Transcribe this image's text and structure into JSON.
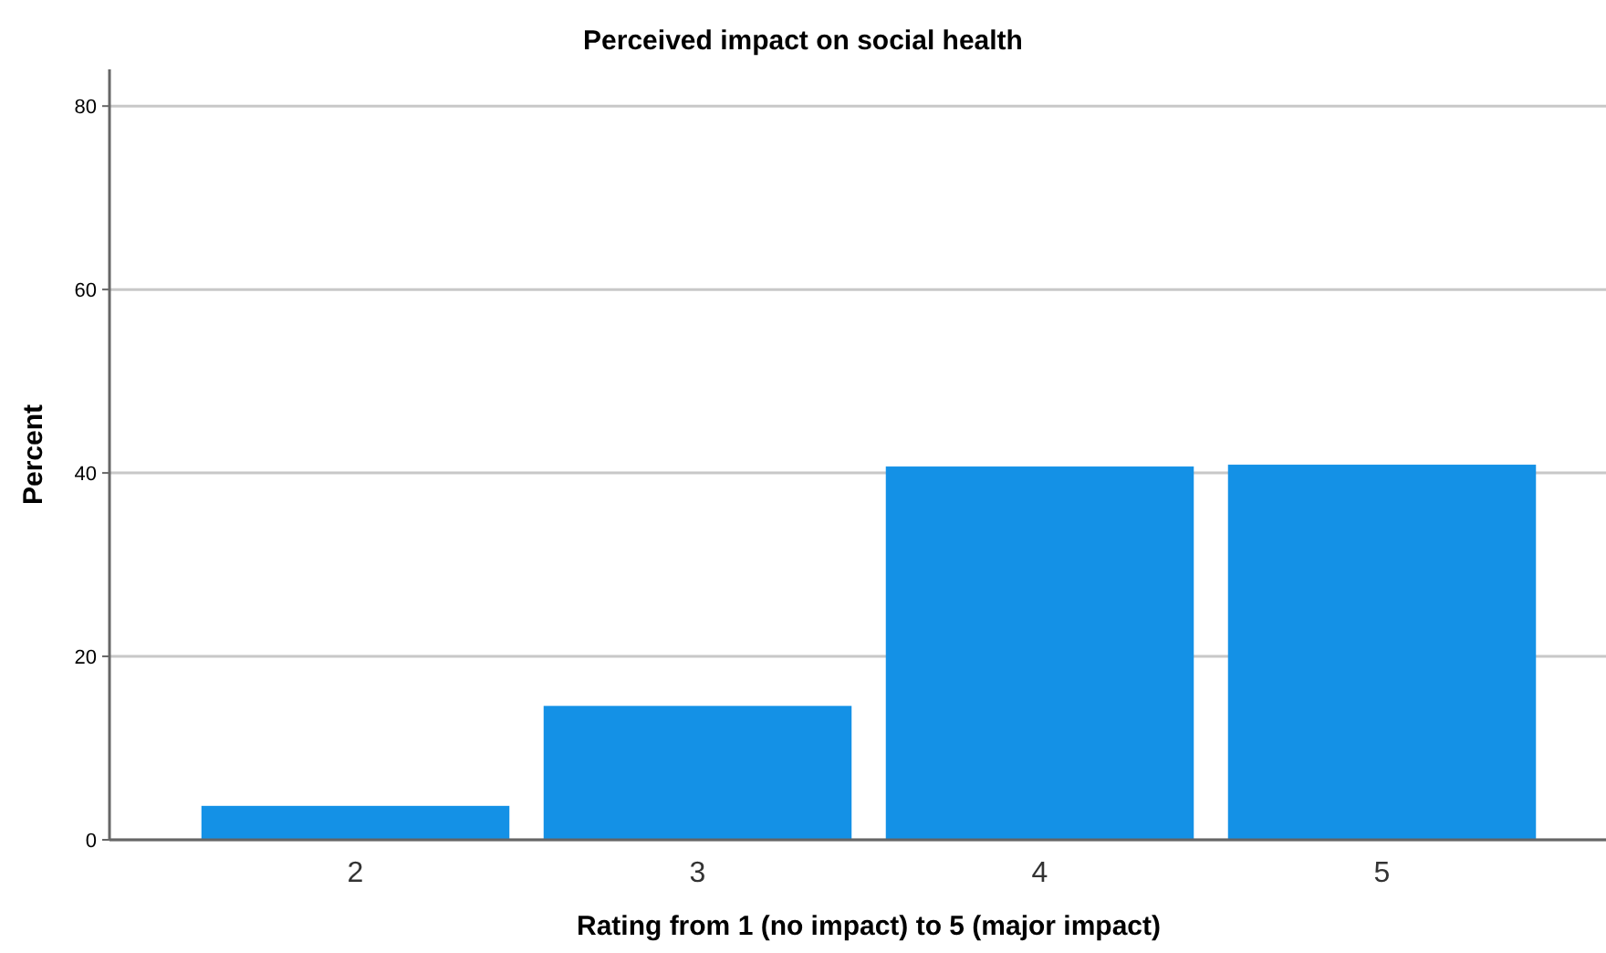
{
  "chart_data": {
    "type": "bar",
    "title": "Perceived impact on social health",
    "xlabel": "Rating from 1 (no impact) to 5 (major impact)",
    "ylabel": "Percent",
    "categories": [
      "2",
      "3",
      "4",
      "5"
    ],
    "values": [
      3.7,
      14.6,
      40.7,
      40.9
    ],
    "color": "#1491e6",
    "ylim": [
      0,
      84
    ],
    "yticks": [
      0,
      20,
      40,
      60,
      80
    ],
    "grid": "y"
  }
}
